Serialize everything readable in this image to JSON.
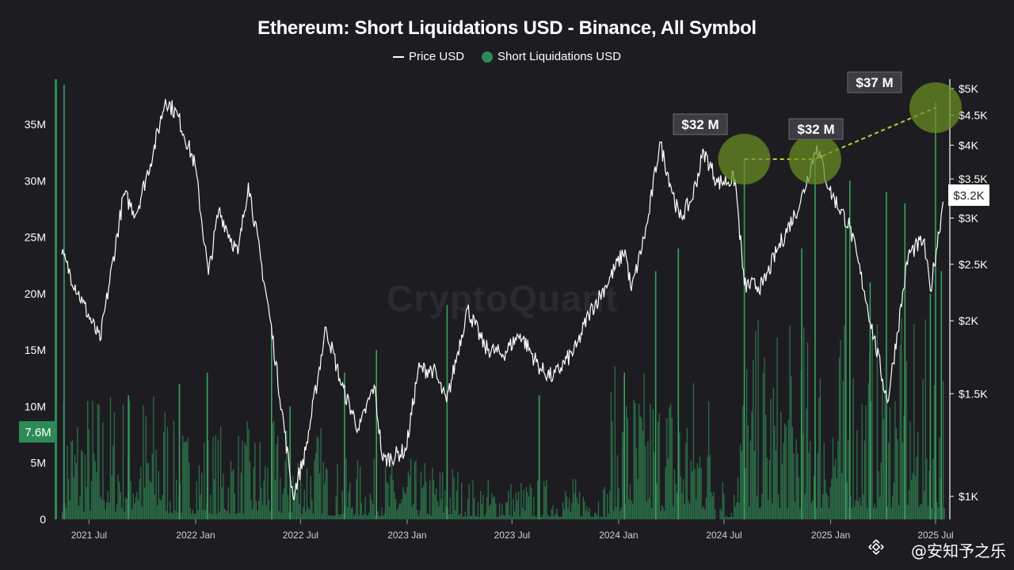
{
  "chart_data": {
    "type": "bar+line",
    "title": "Ethereum: Short Liquidations USD - Binance, All Symbol",
    "legend": [
      {
        "name": "Price USD",
        "style": "line",
        "color": "#ffffff"
      },
      {
        "name": "Short Liquidations USD",
        "style": "dot",
        "color": "#2e8b57"
      }
    ],
    "left_axis": {
      "ticks": [
        "0",
        "5M",
        "10M",
        "15M",
        "20M",
        "25M",
        "30M",
        "35M"
      ],
      "tick_values": [
        0,
        5,
        10,
        15,
        20,
        25,
        30,
        35
      ],
      "unit": "M USD",
      "ylim": [
        0,
        39
      ]
    },
    "right_axis": {
      "scale": "log",
      "ticks": [
        "$1K",
        "$1.5K",
        "$2K",
        "$2.5K",
        "$3K",
        "$3.5K",
        "$4K",
        "$4.5K",
        "$5K"
      ],
      "tick_values": [
        1000,
        1500,
        2000,
        2500,
        3000,
        3500,
        4000,
        4500,
        5000
      ]
    },
    "x_axis": {
      "ticks": [
        "2021 Jul",
        "2022 Jan",
        "2022 Jul",
        "2023 Jan",
        "2023 Jul",
        "2024 Jan",
        "2024 Jul",
        "2025 Jan",
        "2025 Jul"
      ]
    },
    "current_price_label": "$3.2K",
    "current_liquidation_label": "7.6M",
    "price_series": {
      "name": "Price USD",
      "x": [
        "2021-05-15",
        "2021-06-20",
        "2021-07-20",
        "2021-08-30",
        "2021-09-20",
        "2021-10-20",
        "2021-11-10",
        "2021-12-01",
        "2021-12-31",
        "2022-01-23",
        "2022-02-10",
        "2022-03-15",
        "2022-04-02",
        "2022-05-10",
        "2022-06-18",
        "2022-07-10",
        "2022-08-14",
        "2022-09-10",
        "2022-10-10",
        "2022-11-05",
        "2022-11-20",
        "2022-12-30",
        "2023-01-20",
        "2023-02-15",
        "2023-03-10",
        "2023-04-15",
        "2023-05-15",
        "2023-06-15",
        "2023-07-15",
        "2023-08-20",
        "2023-09-10",
        "2023-10-20",
        "2023-11-10",
        "2023-12-10",
        "2024-01-12",
        "2024-01-23",
        "2024-02-20",
        "2024-03-12",
        "2024-04-15",
        "2024-05-05",
        "2024-05-27",
        "2024-06-20",
        "2024-07-20",
        "2024-08-05",
        "2024-09-06",
        "2024-10-01",
        "2024-11-10",
        "2024-12-08",
        "2024-12-30",
        "2025-02-03",
        "2025-02-28",
        "2025-04-09",
        "2025-05-15",
        "2025-06-10",
        "2025-06-22",
        "2025-07-14"
      ],
      "y": [
        2600,
        2150,
        1850,
        3300,
        3050,
        3900,
        4800,
        4500,
        3700,
        2400,
        3100,
        2600,
        3450,
        2000,
        1000,
        1200,
        1950,
        1550,
        1300,
        1550,
        1150,
        1200,
        1650,
        1650,
        1450,
        2100,
        1800,
        1750,
        1900,
        1650,
        1600,
        1800,
        2050,
        2300,
        2650,
        2250,
        2950,
        4050,
        3000,
        3200,
        3900,
        3450,
        3500,
        2300,
        2300,
        2650,
        3200,
        4000,
        3350,
        2900,
        2250,
        1450,
        2600,
        2750,
        2250,
        3200
      ]
    },
    "annotations": [
      {
        "label": "$32 M",
        "date": "2024-08-05"
      },
      {
        "label": "$32 M",
        "date": "2024-12-05"
      },
      {
        "label": "$37 M",
        "date": "2025-07-01"
      }
    ],
    "liquidation_spikes": {
      "name": "Short Liquidations USD",
      "x": [
        "2021-05-19",
        "2021-09-07",
        "2021-12-04",
        "2022-01-21",
        "2022-05-12",
        "2022-06-13",
        "2022-09-15",
        "2022-11-09",
        "2023-03-11",
        "2023-08-17",
        "2024-01-11",
        "2024-03-05",
        "2024-04-13",
        "2024-08-05",
        "2024-11-12",
        "2024-12-05",
        "2025-01-27",
        "2025-02-03",
        "2025-03-10",
        "2025-04-07",
        "2025-05-09",
        "2025-06-22",
        "2025-07-01",
        "2025-07-11"
      ],
      "y": [
        38.5,
        11,
        12,
        13,
        17,
        10,
        13,
        15,
        19,
        11,
        13,
        22,
        24,
        32,
        24,
        32,
        26,
        30,
        21,
        29,
        28,
        20,
        37,
        22
      ]
    },
    "grid": false
  },
  "watermark": "@安知予之乐",
  "background_brand": "CryptoQuant",
  "colors": {
    "bg": "#1d1d21",
    "bar": "#2e8b57",
    "price": "#ffffff",
    "annotation_fill": "#5e7d1e",
    "annotation_line": "#b5d334",
    "label_bg": "#3c3c42"
  }
}
